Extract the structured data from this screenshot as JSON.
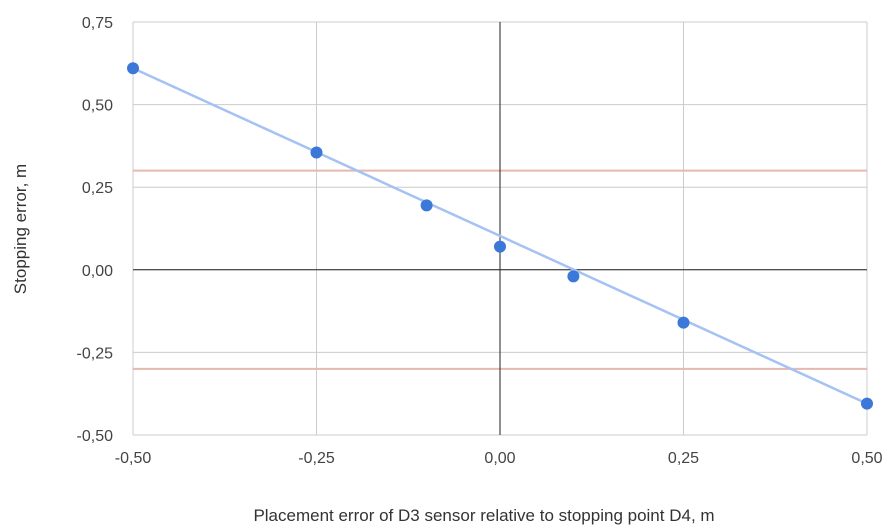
{
  "chart_data": {
    "type": "scatter",
    "title": "",
    "xlabel": "Placement error of D3 sensor relative to stopping point D4, m",
    "ylabel": "Stopping error, m",
    "xlim": [
      -0.5,
      0.5
    ],
    "ylim": [
      -0.5,
      0.75
    ],
    "x_ticks": [
      -0.5,
      -0.25,
      0,
      0.25,
      0.5
    ],
    "y_ticks": [
      -0.5,
      -0.25,
      0,
      0.25,
      0.5,
      0.75
    ],
    "x_tick_labels": [
      "-0,50",
      "-0,25",
      "0,00",
      "0,25",
      "0,50"
    ],
    "y_tick_labels": [
      "-0,50",
      "-0,25",
      "0,00",
      "0,25",
      "0,50",
      "0,75"
    ],
    "grid": true,
    "series": [
      {
        "x": [
          -0.5,
          -0.25,
          -0.1,
          0,
          0.1,
          0.25,
          0.5
        ],
        "y": [
          0.61,
          0.355,
          0.195,
          0.07,
          -0.02,
          -0.16,
          -0.405
        ],
        "color": "#3c78d8"
      }
    ],
    "trendline": {
      "from": [
        -0.5,
        0.61
      ],
      "to": [
        0.5,
        -0.405
      ],
      "color": "#a4c2f4"
    },
    "reference_lines": [
      {
        "y": 0.3,
        "color": "#e6b8af"
      },
      {
        "y": -0.3,
        "color": "#e6b8af"
      }
    ],
    "zero_axis_color": "#222222",
    "grid_color": "#cccccc"
  }
}
